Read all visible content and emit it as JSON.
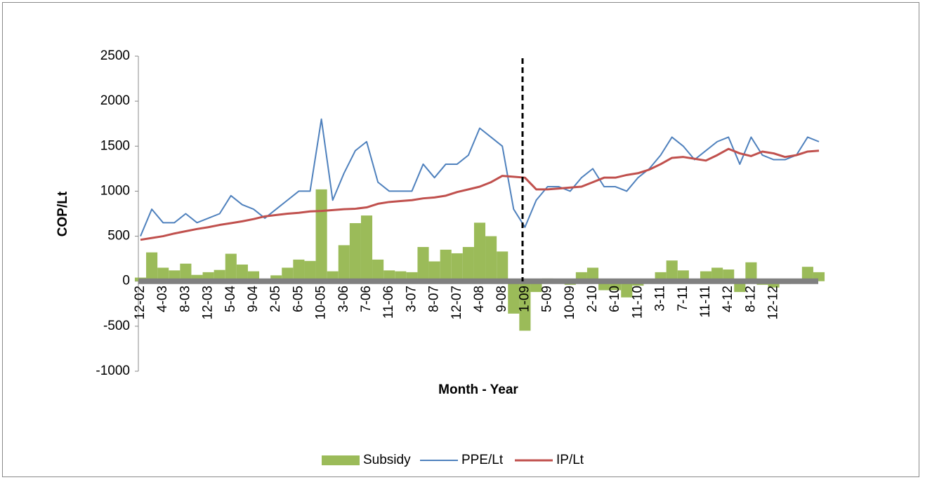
{
  "chart_data": {
    "type": "line",
    "y_axis_label": "COP/Lt",
    "x_axis_label": "Month - Year",
    "categories": [
      "12-02",
      null,
      "4-03",
      null,
      "8-03",
      null,
      "12-03",
      null,
      "5-04",
      null,
      "9-04",
      null,
      "2-05",
      null,
      "6-05",
      null,
      "10-05",
      null,
      "3-06",
      null,
      "7-06",
      null,
      "11-06",
      null,
      "3-07",
      null,
      "8-07",
      null,
      "12-07",
      null,
      "4-08",
      null,
      "9-08",
      null,
      "1-09",
      null,
      "5-09",
      null,
      "10-09",
      null,
      "2-10",
      null,
      "6-10",
      null,
      "11-10",
      null,
      "3-11",
      null,
      "7-11",
      null,
      "11-11",
      null,
      "4-12",
      null,
      "8-12",
      null,
      "12-12",
      null,
      null,
      null,
      null
    ],
    "series": [
      {
        "name": "Subsidy",
        "type": "bar",
        "color": "#9bbb59",
        "values": [
          40,
          320,
          150,
          120,
          195,
          70,
          100,
          125,
          305,
          185,
          110,
          -20,
          65,
          150,
          240,
          225,
          1020,
          110,
          400,
          645,
          730,
          240,
          120,
          110,
          100,
          380,
          220,
          350,
          310,
          380,
          650,
          500,
          330,
          -360,
          -550,
          -120,
          30,
          20,
          -40,
          100,
          150,
          -100,
          -100,
          -180,
          -50,
          10,
          100,
          230,
          120,
          -10,
          110,
          150,
          130,
          -120,
          210,
          -40,
          -70,
          -30,
          0,
          160,
          100
        ]
      },
      {
        "name": "PPE/Lt",
        "type": "line",
        "color": "#4f81bd",
        "values": [
          500,
          800,
          650,
          650,
          750,
          650,
          700,
          750,
          950,
          850,
          800,
          700,
          800,
          900,
          1000,
          1000,
          1800,
          900,
          1200,
          1450,
          1550,
          1100,
          1000,
          1000,
          1000,
          1300,
          1150,
          1300,
          1300,
          1400,
          1700,
          1600,
          1500,
          800,
          600,
          900,
          1050,
          1050,
          1000,
          1150,
          1250,
          1050,
          1050,
          1000,
          1150,
          1250,
          1400,
          1600,
          1500,
          1350,
          1450,
          1550,
          1600,
          1300,
          1600,
          1400,
          1350,
          1350,
          1400,
          1600,
          1550
        ]
      },
      {
        "name": "IP/Lt",
        "type": "line",
        "color": "#c0504d",
        "values": [
          460,
          480,
          500,
          530,
          555,
          580,
          600,
          625,
          645,
          665,
          690,
          720,
          735,
          750,
          760,
          775,
          780,
          790,
          800,
          805,
          820,
          860,
          880,
          890,
          900,
          920,
          930,
          950,
          990,
          1020,
          1050,
          1100,
          1170,
          1160,
          1150,
          1020,
          1020,
          1030,
          1040,
          1050,
          1100,
          1150,
          1150,
          1180,
          1200,
          1240,
          1300,
          1370,
          1380,
          1360,
          1340,
          1400,
          1470,
          1420,
          1390,
          1440,
          1420,
          1380,
          1400,
          1440,
          1450
        ]
      }
    ],
    "ylim": [
      -1000,
      2500
    ],
    "yticks": [
      -1000,
      -500,
      0,
      500,
      1000,
      1500,
      2000,
      2500
    ],
    "legend": "bottom"
  }
}
